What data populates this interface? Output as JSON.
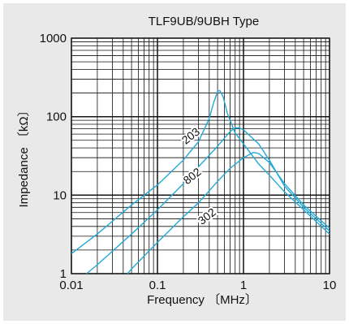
{
  "chart_data": {
    "type": "line",
    "title": "TLF9UB/9UBH Type",
    "xlabel": "Frequency 〔MHz〕",
    "ylabel": "Impedance 〔kΩ〕",
    "xscale": "log",
    "yscale": "log",
    "xlim": [
      0.01,
      10
    ],
    "ylim": [
      1,
      1000
    ],
    "x_tick_labels": [
      "0.01",
      "0.1",
      "1",
      "10"
    ],
    "y_tick_labels": [
      "1",
      "10",
      "100",
      "1000"
    ],
    "grid": true,
    "line_color": "#22a9d6",
    "series": [
      {
        "name": "203",
        "points": [
          [
            0.01,
            1.8
          ],
          [
            0.02,
            3.2
          ],
          [
            0.05,
            7.5
          ],
          [
            0.1,
            13.5
          ],
          [
            0.2,
            28
          ],
          [
            0.3,
            48
          ],
          [
            0.4,
            95
          ],
          [
            0.45,
            150
          ],
          [
            0.5,
            210
          ],
          [
            0.53,
            215
          ],
          [
            0.58,
            180
          ],
          [
            0.65,
            110
          ],
          [
            0.8,
            62
          ],
          [
            1.0,
            45
          ],
          [
            1.5,
            25
          ],
          [
            2,
            18
          ],
          [
            3,
            11
          ],
          [
            5,
            6.5
          ],
          [
            10,
            3.2
          ]
        ]
      },
      {
        "name": "802",
        "points": [
          [
            0.015,
            1.0
          ],
          [
            0.02,
            1.3
          ],
          [
            0.05,
            3.2
          ],
          [
            0.1,
            6.5
          ],
          [
            0.2,
            14
          ],
          [
            0.3,
            23
          ],
          [
            0.5,
            42
          ],
          [
            0.7,
            65
          ],
          [
            0.8,
            72
          ],
          [
            0.9,
            72
          ],
          [
            1.0,
            68
          ],
          [
            1.5,
            45
          ],
          [
            2,
            28
          ],
          [
            3,
            13
          ],
          [
            5,
            7
          ],
          [
            10,
            3.5
          ]
        ]
      },
      {
        "name": "302",
        "points": [
          [
            0.045,
            1.0
          ],
          [
            0.05,
            1.15
          ],
          [
            0.1,
            2.5
          ],
          [
            0.2,
            5.3
          ],
          [
            0.3,
            8
          ],
          [
            0.5,
            15
          ],
          [
            0.7,
            22
          ],
          [
            1.0,
            30
          ],
          [
            1.3,
            35
          ],
          [
            1.5,
            34
          ],
          [
            2,
            26
          ],
          [
            3,
            14
          ],
          [
            5,
            7.5
          ],
          [
            10,
            3.8
          ]
        ]
      }
    ],
    "curve_labels": [
      {
        "text": "203",
        "x": 0.26,
        "y": 52,
        "angle": -38
      },
      {
        "text": "802",
        "x": 0.27,
        "y": 16,
        "angle": -38
      },
      {
        "text": "302",
        "x": 0.4,
        "y": 4.9,
        "angle": -38
      }
    ]
  }
}
